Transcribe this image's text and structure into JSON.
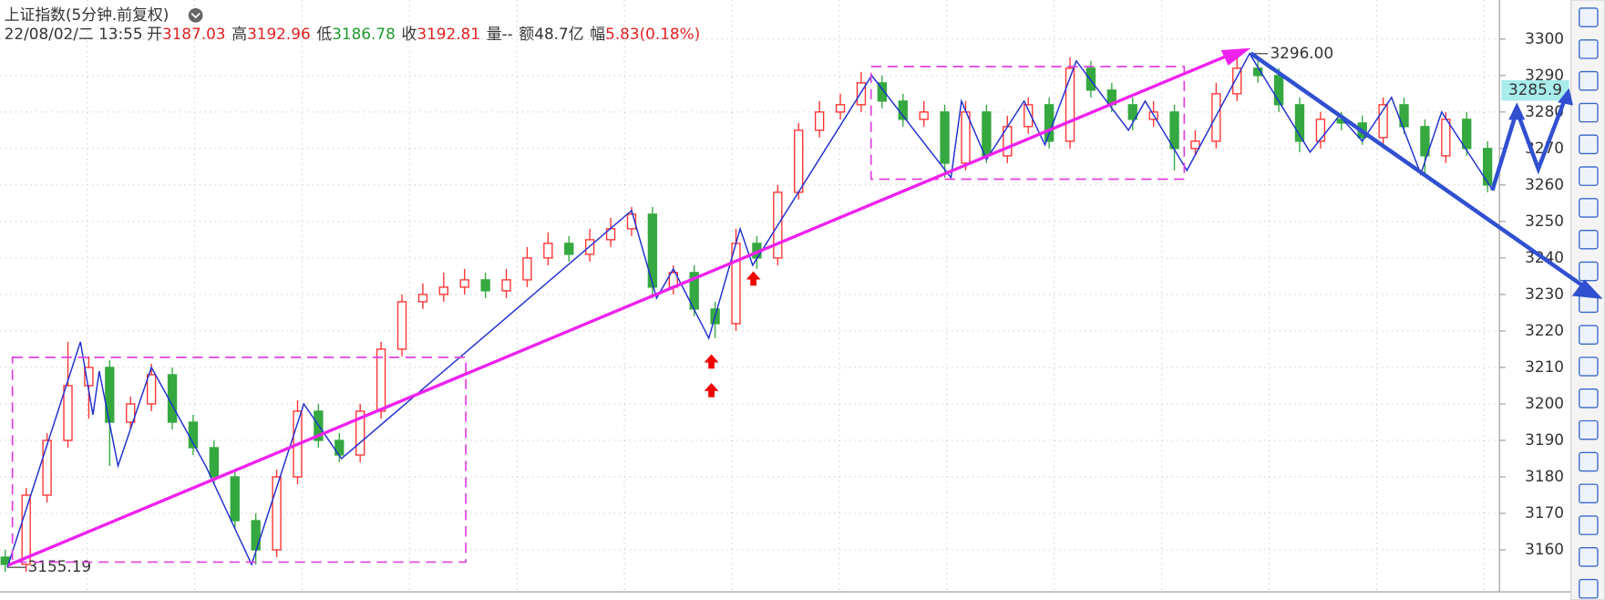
{
  "header": {
    "title": "上证指数(5分钟.前复权)",
    "date": "22/08/02/二 13:55",
    "stats": [
      {
        "label": "开",
        "value": "3187.03",
        "color": "#e02020"
      },
      {
        "label": "高",
        "value": "3192.96",
        "color": "#e02020"
      },
      {
        "label": "低",
        "value": "3186.78",
        "color": "#1f9a2f"
      },
      {
        "label": "收",
        "value": "3192.81",
        "color": "#e02020"
      },
      {
        "label": "量",
        "value": "--",
        "color": "#333333"
      },
      {
        "label": "额",
        "value": "48.7亿",
        "color": "#333333"
      },
      {
        "label": "幅",
        "value": "5.83(0.18%)",
        "color": "#e02020"
      }
    ]
  },
  "chart_data": {
    "type": "candlestick",
    "up_color": "#ff3030",
    "down_color": "#35a840",
    "ylim": [
      3148.5,
      3310.7
    ],
    "yticks": [
      3160,
      3170,
      3180,
      3190,
      3200,
      3210,
      3220,
      3230,
      3240,
      3250,
      3260,
      3270,
      3280,
      3290,
      3300
    ],
    "grid": true,
    "open": [
      3158,
      3156,
      3175,
      3190,
      3205,
      3210,
      3195,
      3200,
      3208,
      3195,
      3188,
      3180,
      3168,
      3160,
      3180,
      3198,
      3190,
      3186,
      3198,
      3215,
      3228,
      3230,
      3232,
      3234,
      3231,
      3234,
      3240,
      3244,
      3241,
      3245,
      3248,
      3252,
      3232,
      3236,
      3226,
      3222,
      3244,
      3240,
      3258,
      3275,
      3280,
      3282,
      3288,
      3283,
      3278,
      3280,
      3266,
      3280,
      3268,
      3276,
      3282,
      3272,
      3292,
      3286,
      3282,
      3278,
      3280,
      3270,
      3272,
      3285,
      3292,
      3290,
      3282,
      3272,
      3278,
      3277,
      3273,
      3282,
      3276,
      3268,
      3278,
      3270
    ],
    "high": [
      3160,
      3177,
      3192,
      3217,
      3213,
      3212,
      3202,
      3211,
      3210,
      3197,
      3190,
      3182,
      3170,
      3182,
      3201,
      3200,
      3192,
      3200,
      3217,
      3230,
      3233,
      3236,
      3237,
      3236,
      3237,
      3243,
      3247,
      3246,
      3248,
      3251,
      3254,
      3254,
      3238,
      3238,
      3228,
      3248,
      3246,
      3260,
      3277,
      3283,
      3285,
      3291,
      3290,
      3285,
      3283,
      3282,
      3283,
      3282,
      3279,
      3284,
      3284,
      3295,
      3294,
      3288,
      3284,
      3283,
      3282,
      3275,
      3288,
      3296,
      3295,
      3292,
      3284,
      3280,
      3280,
      3279,
      3284,
      3284,
      3278,
      3280,
      3280,
      3272
    ],
    "low": [
      3154,
      3154,
      3173,
      3188,
      3196,
      3183,
      3193,
      3198,
      3193,
      3186,
      3178,
      3166,
      3156,
      3158,
      3178,
      3188,
      3184,
      3184,
      3196,
      3213,
      3226,
      3228,
      3230,
      3229,
      3229,
      3232,
      3238,
      3239,
      3239,
      3243,
      3246,
      3229,
      3230,
      3224,
      3218,
      3220,
      3237,
      3238,
      3256,
      3273,
      3278,
      3280,
      3281,
      3276,
      3276,
      3262,
      3264,
      3266,
      3266,
      3274,
      3270,
      3270,
      3284,
      3280,
      3275,
      3276,
      3264,
      3268,
      3270,
      3283,
      3288,
      3280,
      3269,
      3270,
      3275,
      3271,
      3271,
      3274,
      3263,
      3266,
      3268,
      3258
    ],
    "close": [
      3156,
      3175,
      3190,
      3205,
      3210,
      3195,
      3200,
      3208,
      3195,
      3188,
      3180,
      3168,
      3160,
      3180,
      3198,
      3190,
      3186,
      3198,
      3215,
      3228,
      3230,
      3232,
      3234,
      3231,
      3234,
      3240,
      3244,
      3241,
      3245,
      3248,
      3252,
      3232,
      3236,
      3226,
      3222,
      3244,
      3240,
      3258,
      3275,
      3280,
      3282,
      3288,
      3283,
      3278,
      3280,
      3266,
      3280,
      3268,
      3276,
      3282,
      3272,
      3292,
      3286,
      3282,
      3278,
      3280,
      3270,
      3272,
      3285,
      3292,
      3290,
      3282,
      3272,
      3278,
      3277,
      3273,
      3282,
      3276,
      3268,
      3278,
      3270,
      3260
    ],
    "zigzag": {
      "color": "#1f2fd0",
      "x": [
        0.1,
        3.6,
        4.2,
        4.5,
        5.4,
        7,
        9.6,
        11.8,
        14.3,
        16.1,
        30,
        31.2,
        32,
        33.7,
        35.2,
        35.8,
        41.5,
        45.3,
        45.8,
        47,
        48.8,
        49.8,
        51.3,
        53.8,
        54.6,
        56.6,
        59.6,
        62.5,
        63.9,
        65,
        66.4,
        67.8,
        68.8,
        71.2
      ],
      "values": [
        3155.19,
        3217,
        3197,
        3209,
        3183,
        3210,
        3183,
        3156,
        3200,
        3185,
        3253,
        3229,
        3237,
        3218,
        3248,
        3238,
        3290,
        3262,
        3283,
        3267,
        3283,
        3271,
        3294,
        3275,
        3283,
        3264,
        3296,
        3269,
        3279,
        3272,
        3284,
        3263,
        3280,
        3259
      ]
    },
    "last_price": {
      "value": 3285.9,
      "label": "3285.9"
    },
    "annotations": [
      {
        "x": 59.6,
        "value": 3296,
        "label": "3296.00"
      },
      {
        "x": 0.1,
        "value": 3155.19,
        "label": "3155.19"
      }
    ]
  }
}
